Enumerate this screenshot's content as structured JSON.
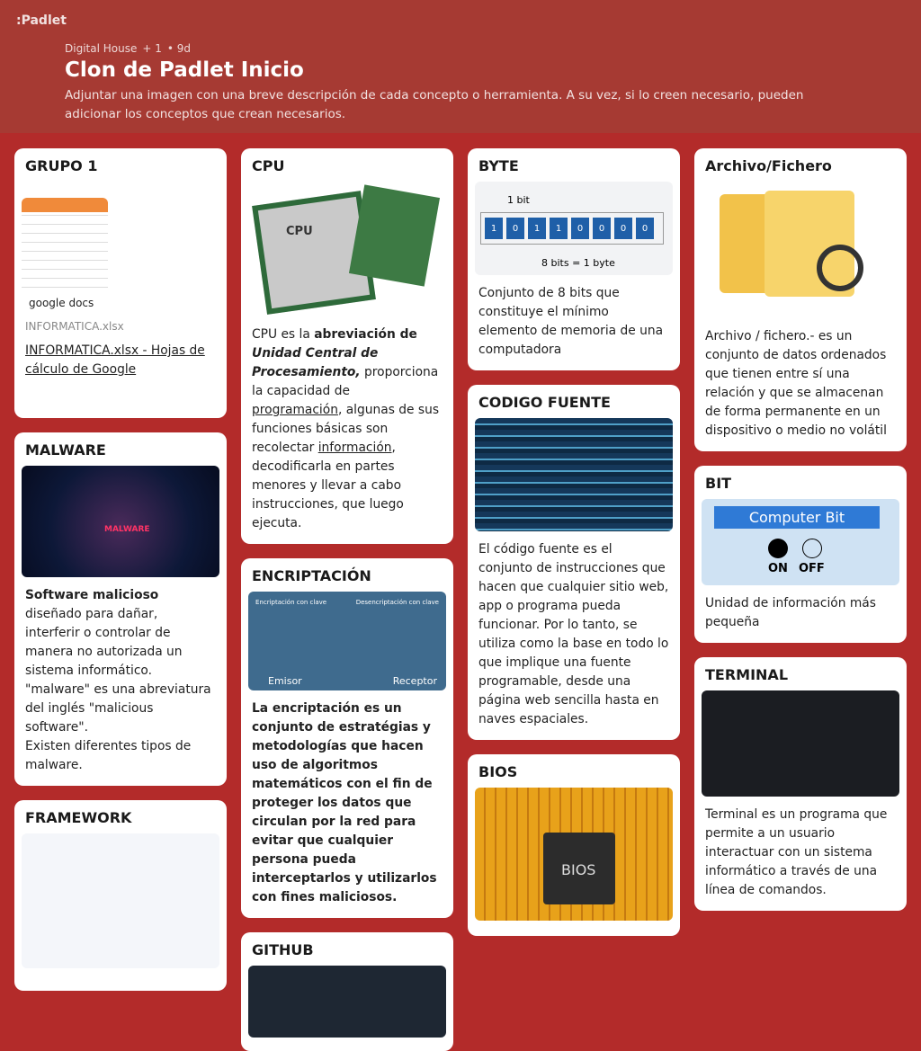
{
  "header": {
    "logo": ":Padlet",
    "author": "Digital House",
    "contributors": "+ 1",
    "age": "• 9d",
    "title": "Clon de Padlet Inicio",
    "description": "Adjuntar una imagen con una breve descripción de cada concepto o herramienta. A su vez, si lo creen necesario, pueden adicionar los conceptos que crean necesarios."
  },
  "columns": [
    [
      {
        "title": "GRUPO 1",
        "image_label": "google docs",
        "caption": "INFORMATICA.xlsx",
        "link": "INFORMATICA.xlsx - Hojas de cálculo de Google"
      },
      {
        "title": "MALWARE",
        "image_label": "MALWARE",
        "body": [
          [
            {
              "text": "Software malicioso",
              "style": "b"
            },
            {
              "text": " diseñado para dañar, interferir o controlar de manera no autorizada un sistema informático. \"malware\" es una abreviatura del inglés \"malicious software\"."
            }
          ],
          [
            {
              "text": "Existen diferentes tipos de malware."
            }
          ]
        ]
      },
      {
        "title": "FRAMEWORK"
      }
    ],
    [
      {
        "title": "CPU",
        "image_label": "CPU",
        "body": [
          [
            {
              "text": "CPU es la "
            },
            {
              "text": "abreviación de ",
              "style": "b"
            },
            {
              "text": "Unidad Central de Procesamiento,",
              "style": "bi"
            },
            {
              "text": " proporciona la capacidad de "
            },
            {
              "text": "programación",
              "style": "u"
            },
            {
              "text": ", algunas de sus funciones básicas son recolectar "
            },
            {
              "text": "información",
              "style": "u"
            },
            {
              "text": ", decodificarla en partes menores y llevar a cabo instrucciones, que luego ejecuta."
            }
          ]
        ]
      },
      {
        "title": "ENCRIPTACIÓN",
        "image_labels": [
          "Encriptación con clave",
          "Desencriptación con clave",
          "Emisor",
          "Receptor"
        ],
        "body": [
          [
            {
              "text": "La encriptación es un conjunto de estratégias y metodologías que hacen uso de algoritmos matemáticos con el fin de proteger los datos que circulan por la red para evitar que cualquier persona pueda interceptarlos y utilizarlos con fines maliciosos.",
              "style": "b"
            }
          ]
        ]
      },
      {
        "title": "GITHUB"
      }
    ],
    [
      {
        "title": "BYTE",
        "image_labels": [
          "1 bit",
          "8 bits = 1 byte"
        ],
        "bits": [
          "1",
          "0",
          "1",
          "1",
          "0",
          "0",
          "0",
          "0"
        ],
        "body": [
          [
            {
              "text": "Conjunto de 8 bits que constituye el mínimo elemento de memoria de una computadora"
            }
          ]
        ]
      },
      {
        "title": "CODIGO FUENTE",
        "body": [
          [
            {
              "text": "El código fuente es el conjunto de instrucciones que hacen que cualquier sitio web, app o programa pueda funcionar. Por lo tanto, se utiliza como la base en todo lo que implique una fuente programable, desde una página web sencilla hasta en naves espaciales."
            }
          ]
        ]
      },
      {
        "title": "BIOS",
        "image_label": "BIOS"
      }
    ],
    [
      {
        "title": "Archivo/Fichero",
        "body": [
          [
            {
              "text": "Archivo / fichero.- es un conjunto de datos ordenados que tienen entre sí una relación y que se almacenan de forma permanente en un dispositivo o medio no volátil"
            }
          ]
        ]
      },
      {
        "title": "BIT",
        "image_labels": [
          "Computer Bit",
          "ON",
          "OFF"
        ],
        "body": [
          [
            {
              "text": "Unidad de información más pequeña"
            }
          ]
        ]
      },
      {
        "title": "TERMINAL",
        "body": [
          [
            {
              "text": "Terminal es un programa que permite a un usuario interactuar con un sistema informático a través de una línea de comandos."
            }
          ]
        ]
      }
    ]
  ]
}
